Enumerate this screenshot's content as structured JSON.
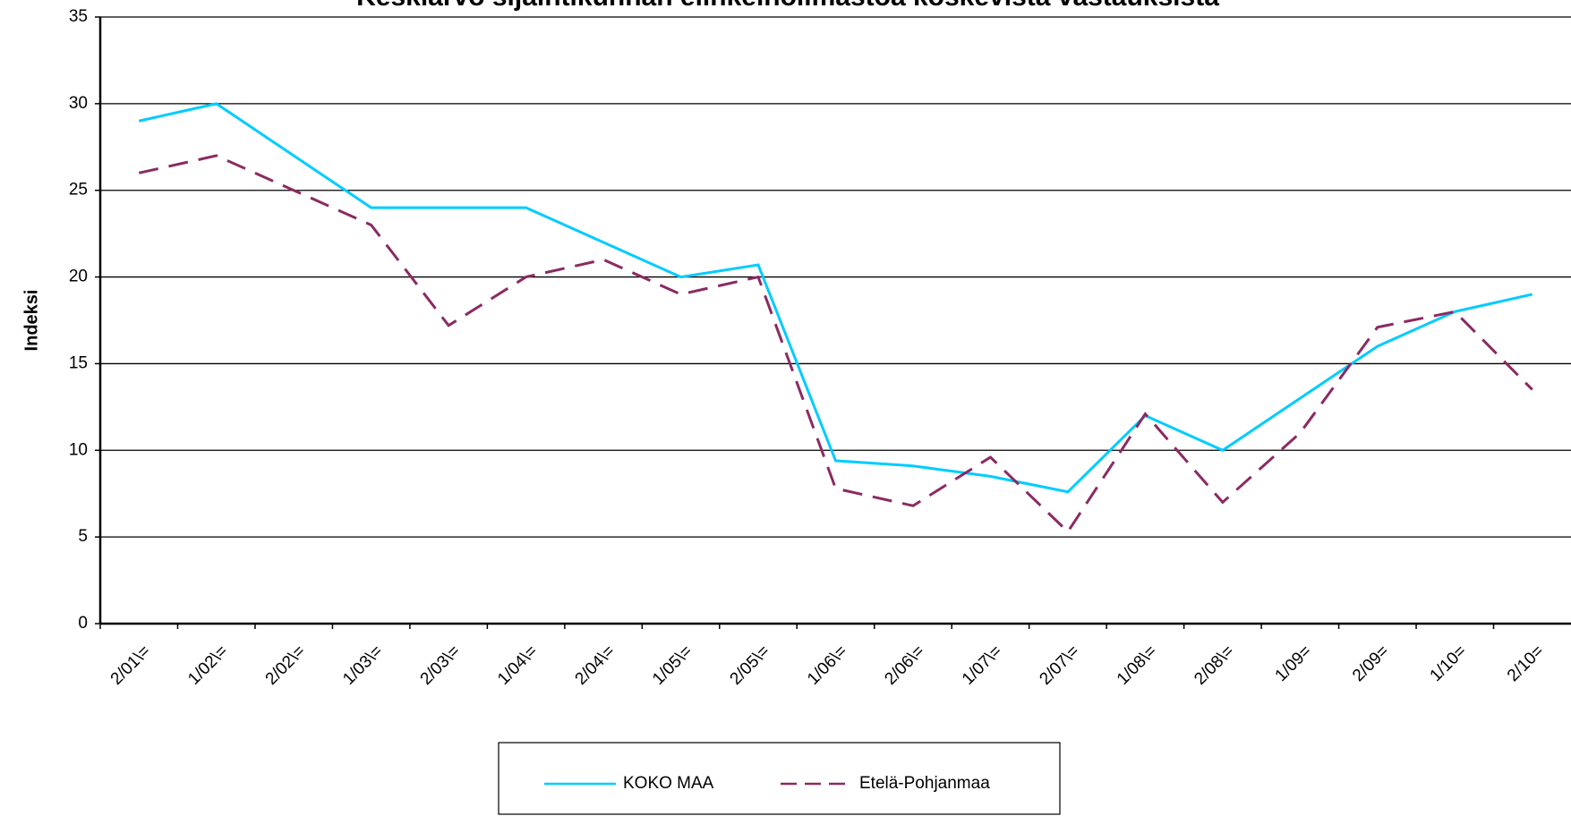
{
  "chart_data": {
    "type": "line",
    "title": "Keskiarvo sijaintikunnan elinkeinoilmastoa koskevista vastauksista",
    "y_label": "Indeksi",
    "categories": [
      "2/01\\=",
      "1/02\\=",
      "2/02\\=",
      "1/03\\=",
      "2/03\\=",
      "1/04\\=",
      "2/04\\=",
      "1/05\\=",
      "2/05\\=",
      "1/06\\=",
      "2/06\\=",
      "1/07\\=",
      "2/07\\=",
      "1/08\\=",
      "2/08\\=",
      "1/09=",
      "2/09=",
      "1/10=",
      "2/10="
    ],
    "series": [
      {
        "name": "KOKO MAA",
        "color": "#00ccff",
        "dash": false,
        "values": [
          29,
          30,
          27,
          24,
          24,
          24,
          22,
          20,
          20.7,
          9.4,
          9.1,
          8.5,
          7.6,
          12,
          10,
          13,
          16,
          18,
          19
        ]
      },
      {
        "name": "Etelä-Pohjanmaa",
        "color": "#8b2a62",
        "dash": true,
        "values": [
          26,
          27,
          25,
          23,
          17.2,
          20,
          21,
          19,
          20,
          7.8,
          6.8,
          9.6,
          5.3,
          12.1,
          7,
          11,
          17.1,
          18,
          13.5
        ]
      }
    ],
    "ylim": [
      0,
      35
    ],
    "yticks": [
      0,
      5,
      10,
      15,
      20,
      25,
      30,
      35
    ],
    "grid": true,
    "legend": "bottom"
  }
}
